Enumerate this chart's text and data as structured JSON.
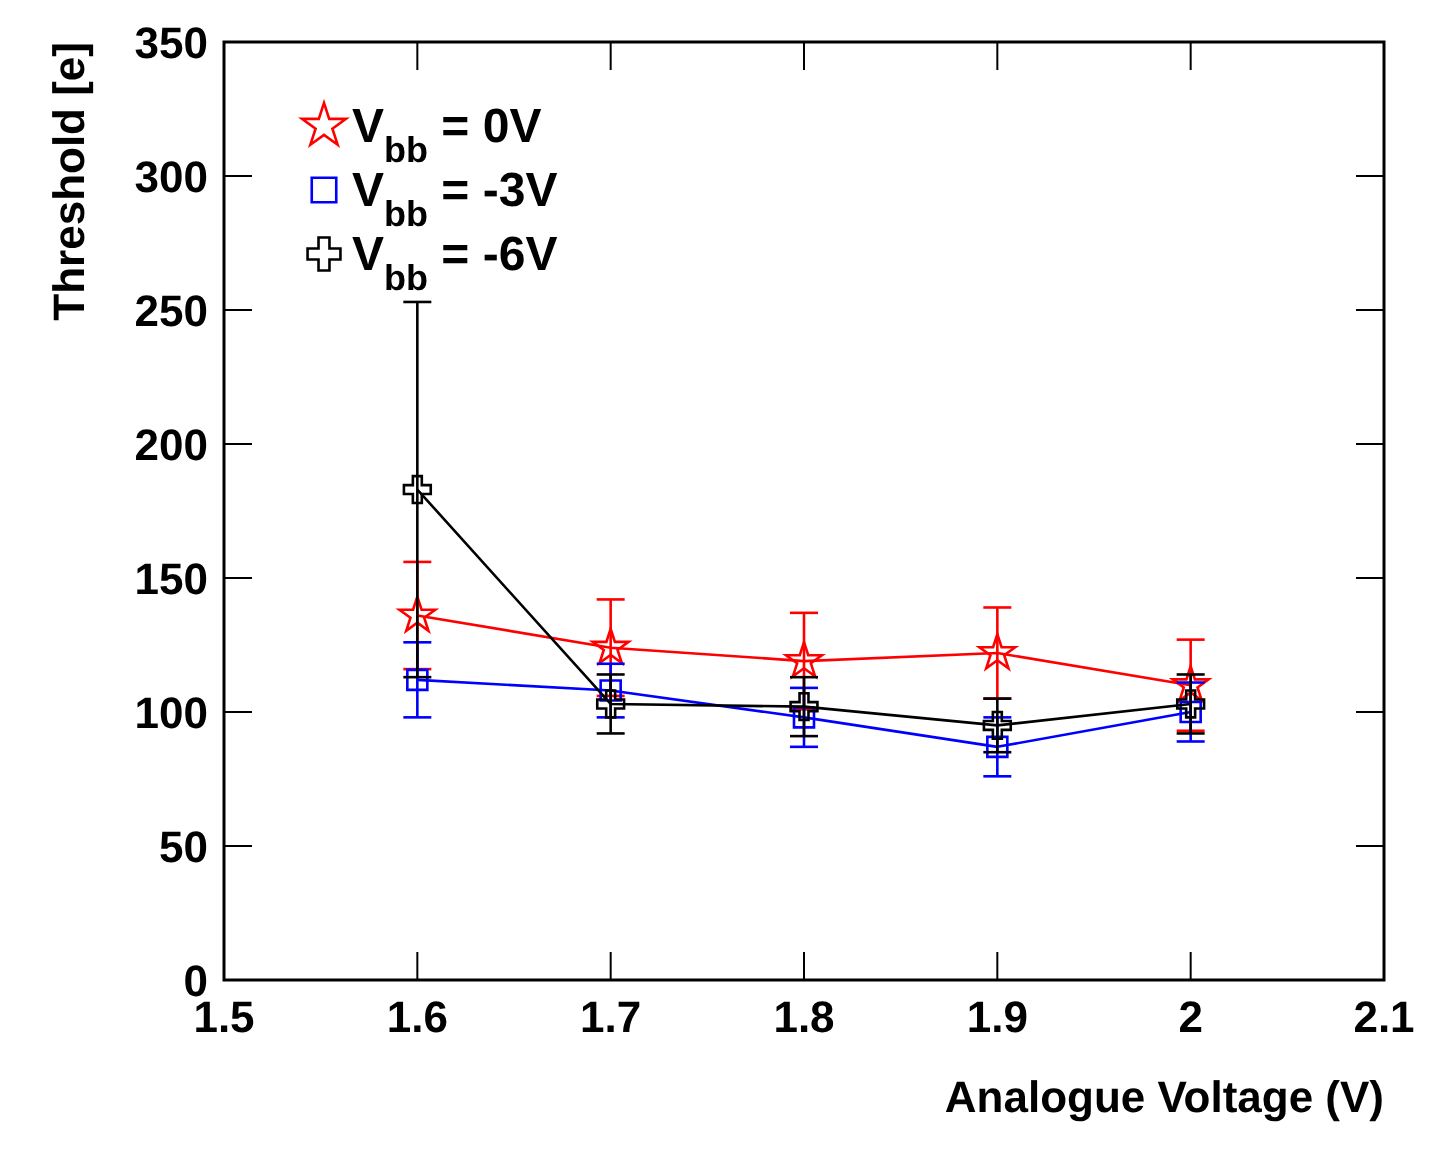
{
  "chart_data": {
    "type": "line",
    "xlabel": "Analogue Voltage (V)",
    "ylabel": "Threshold [e]",
    "x": [
      1.6,
      1.7,
      1.8,
      1.9,
      2.0
    ],
    "xlim": [
      1.5,
      2.1
    ],
    "xticks": [
      1.5,
      1.6,
      1.7,
      1.8,
      1.9,
      2,
      2.1
    ],
    "ylim": [
      0,
      350
    ],
    "yticks": [
      0,
      50,
      100,
      150,
      200,
      250,
      300,
      350
    ],
    "grid": false,
    "legend": "top left",
    "series": [
      {
        "name": "V$_{bb}$ = 0V",
        "color": "#ff0000",
        "marker": "star",
        "values": [
          136,
          124,
          119,
          122,
          110
        ],
        "errors": [
          20,
          18,
          18,
          17,
          17
        ]
      },
      {
        "name": "V$_{bb}$ = -3V",
        "color": "#0000ff",
        "marker": "square",
        "values": [
          112,
          108,
          98,
          87,
          100
        ],
        "errors": [
          14,
          10,
          11,
          11,
          11
        ]
      },
      {
        "name": "V$_{bb}$ = -6V",
        "color": "#000000",
        "marker": "cross",
        "values": [
          183,
          103,
          102,
          95,
          103
        ],
        "errors": [
          70,
          11,
          11,
          10,
          11
        ]
      }
    ]
  }
}
